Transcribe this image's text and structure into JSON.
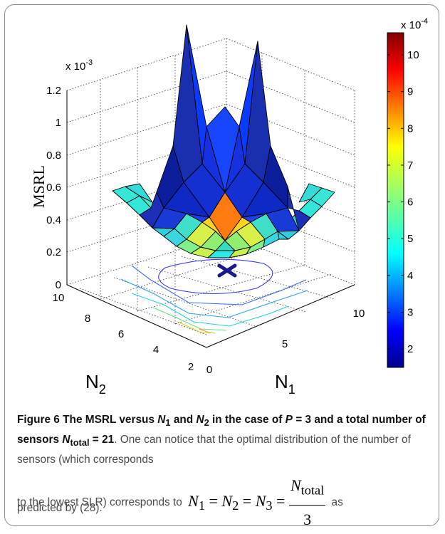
{
  "figure": {
    "caption_head": "Figure 6 The MSRL versus N1 and N2 in the case of P = 3 and a total number of sensors Ntotal = 21",
    "caption_head_parts": {
      "a": "Figure 6 The MSRL versus ",
      "n1": "N",
      "n1_sub": "1",
      "b": " and ",
      "n2": "N",
      "n2_sub": "2",
      "c": " in the case of ",
      "p": "P",
      "d": " = 3 and a total number of sensors ",
      "nt": "N",
      "nt_sub": "total",
      "e": " = 21"
    },
    "caption_body_1": ". One can notice that the optimal distribution of the number of sensors (which corresponds",
    "caption_body_2": "to the lowest SLR) corresponds to",
    "caption_formula": {
      "lhs": "N1 = N2 = N3 =",
      "n": "N",
      "sub1": "1",
      "sub2": "2",
      "sub3": "3",
      "numerator": "Ntotal",
      "numerator_sub": "total",
      "denominator": "3"
    },
    "caption_body_3": "as",
    "caption_body_4": "predicted by (28)."
  },
  "chart_data": {
    "type": "surface",
    "zlabel": "MSRL",
    "xlabel": "N1",
    "ylabel": "N2",
    "xlabel_main": "N",
    "xlabel_sub": "1",
    "ylabel_main": "N",
    "ylabel_sub": "2",
    "z_multiplier": "x 10",
    "z_multiplier_exp": "-3",
    "z_ticks": [
      "0",
      "0.2",
      "0.4",
      "0.6",
      "0.8",
      "1",
      "1.2"
    ],
    "zlim": [
      0,
      0.0012
    ],
    "x_ticks": [
      "0",
      "5",
      "10"
    ],
    "xlim": [
      0,
      10
    ],
    "y_ticks": [
      "2",
      "4",
      "6",
      "8",
      "10"
    ],
    "ylim": [
      2,
      10
    ],
    "grid": true,
    "minimum_marker": {
      "N1": 7,
      "N2": 7,
      "symbol": "x"
    },
    "peaks": [
      {
        "N1": 1,
        "N2": 10,
        "value": 0.00108
      },
      {
        "N1": 10,
        "N2": 1,
        "value": 0.00108
      }
    ],
    "colorbar": {
      "multiplier": "x 10",
      "multiplier_exp": "-4",
      "ticks": [
        "2",
        "3",
        "4",
        "5",
        "6",
        "7",
        "8",
        "9",
        "10"
      ],
      "range": [
        1.5,
        10.6
      ],
      "colors": [
        "#00008f",
        "#0000ff",
        "#0080ff",
        "#00ffff",
        "#80ff80",
        "#ffff00",
        "#ff8000",
        "#ff0000",
        "#800000"
      ]
    },
    "contour_levels": 6
  }
}
